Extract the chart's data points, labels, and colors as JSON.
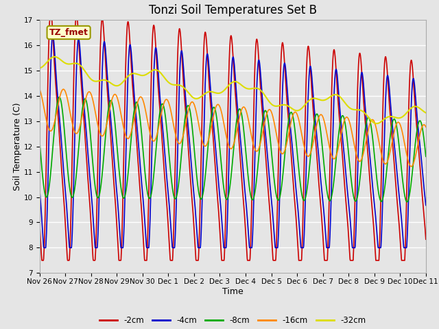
{
  "title": "Tonzi Soil Temperatures Set B",
  "xlabel": "Time",
  "ylabel": "Soil Temperature (C)",
  "ylim": [
    7.0,
    17.0
  ],
  "yticks": [
    7.0,
    8.0,
    9.0,
    10.0,
    11.0,
    12.0,
    13.0,
    14.0,
    15.0,
    16.0,
    17.0
  ],
  "series_colors": [
    "#cc0000",
    "#0000cc",
    "#00aa00",
    "#ff8800",
    "#dddd00"
  ],
  "series_labels": [
    "-2cm",
    "-4cm",
    "-8cm",
    "-16cm",
    "-32cm"
  ],
  "annotation_text": "TZ_fmet",
  "background_color": "#e5e5e5",
  "n_points": 1500,
  "start_day": 0,
  "end_day": 15,
  "xtick_positions": [
    0,
    1,
    2,
    3,
    4,
    5,
    6,
    7,
    8,
    9,
    10,
    11,
    12,
    13,
    14,
    15
  ],
  "xtick_labels": [
    "Nov 26",
    "Nov 27",
    "Nov 28",
    "Nov 29",
    "Nov 30",
    "Dec 1",
    "Dec 2",
    "Dec 3",
    "Dec 4",
    "Dec 5",
    "Dec 6",
    "Dec 7",
    "Dec 8",
    "Dec 9",
    "Dec 10",
    "Dec 11"
  ]
}
